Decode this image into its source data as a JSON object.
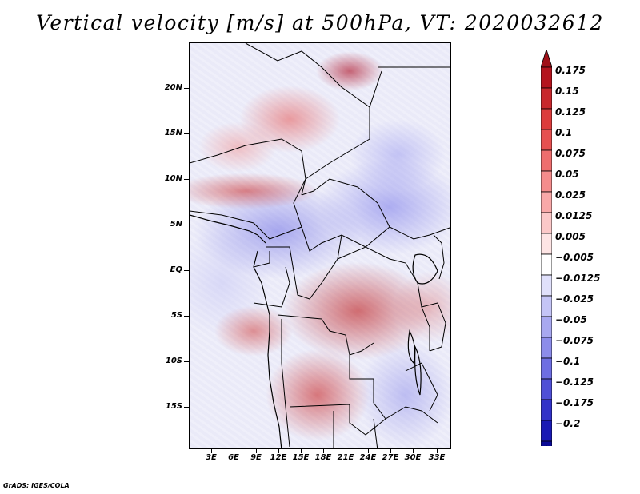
{
  "title": "Vertical velocity [m/s] at 500hPa, VT: 2020032612",
  "footer": "GrADS: IGES/COLA",
  "map": {
    "region": "Central Africa",
    "lat_labels": [
      "20N",
      "15N",
      "10N",
      "5N",
      "EQ",
      "5S",
      "10S",
      "15S"
    ],
    "lon_labels": [
      "3E",
      "6E",
      "9E",
      "12E",
      "15E",
      "18E",
      "21E",
      "24E",
      "27E",
      "30E",
      "33E"
    ]
  },
  "colorbar": {
    "labels": [
      "0.175",
      "0.15",
      "0.125",
      "0.1",
      "0.075",
      "0.05",
      "0.025",
      "0.0125",
      "0.005",
      "−0.005",
      "−0.0125",
      "−0.025",
      "−0.05",
      "−0.075",
      "−0.1",
      "−0.125",
      "−0.175",
      "−0.2"
    ],
    "colors": [
      "#b4141e",
      "#c8282d",
      "#dc3c3c",
      "#e65050",
      "#ee6e6e",
      "#f48c8c",
      "#f8a8a8",
      "#fbc8c8",
      "#fde4e4",
      "#ffffff",
      "#e0e0fb",
      "#c4c4f6",
      "#a8a8f0",
      "#8c8cea",
      "#6e6ee2",
      "#4f4fd6",
      "#3232c8",
      "#1a1ab4",
      "#0a0a96"
    ],
    "top_arrow_color": "#a01018",
    "bottom_arrow_color": "#1a0a8c"
  }
}
